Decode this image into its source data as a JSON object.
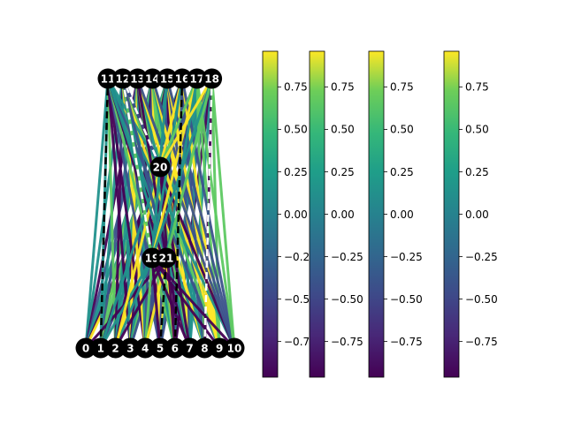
{
  "graph": {
    "bottom_nodes": [
      "0",
      "1",
      "2",
      "3",
      "4",
      "5",
      "6",
      "7",
      "8",
      "9",
      "10"
    ],
    "top_nodes": [
      "11",
      "12",
      "13",
      "14",
      "15",
      "16",
      "17",
      "18"
    ],
    "middle_nodes": [
      "20",
      "19",
      "21"
    ]
  },
  "colorbars": [
    {
      "ticks": [
        "0.75",
        "0.50",
        "0.25",
        "0.00",
        "−0.25",
        "−0.50",
        "−0.75"
      ]
    },
    {
      "ticks": [
        "0.75",
        "0.50",
        "0.25",
        "0.00",
        "−0.25",
        "−0.50",
        "−0.75"
      ]
    },
    {
      "ticks": [
        "0.75",
        "0.50",
        "0.25",
        "0.00",
        "−0.25",
        "−0.50",
        "−0.75"
      ]
    },
    {
      "ticks": [
        "0.75",
        "0.50",
        "0.25",
        "0.00",
        "−0.25",
        "−0.50",
        "−0.75"
      ]
    }
  ],
  "colors": {
    "node_fill": "#000000",
    "node_text": "#ffffff",
    "colormap": [
      "#440154",
      "#3b528b",
      "#21918c",
      "#5ec962",
      "#fde725"
    ]
  }
}
